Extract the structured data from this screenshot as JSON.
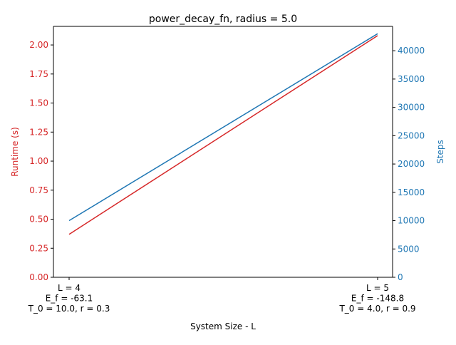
{
  "chart_data": {
    "type": "line",
    "title": "power_decay_fn, radius = 5.0",
    "xlabel": "System Size - L",
    "ylabel_left": "Runtime (s)",
    "ylabel_right": "Steps",
    "categories": [
      [
        "L = 4",
        "E_f = -63.1",
        "T_0 = 10.0, r = 0.3"
      ],
      [
        "L = 5",
        "E_f = -148.8",
        "T_0 = 4.0, r = 0.9"
      ]
    ],
    "ylim_left": [
      0,
      2.16
    ],
    "ylim_right": [
      0,
      44300
    ],
    "yticks_left": [
      "0.00",
      "0.25",
      "0.50",
      "0.75",
      "1.00",
      "1.25",
      "1.50",
      "1.75",
      "2.00"
    ],
    "yticks_right": [
      "0",
      "5000",
      "10000",
      "15000",
      "20000",
      "25000",
      "30000",
      "35000",
      "40000"
    ],
    "series": [
      {
        "name": "Runtime (s)",
        "axis": "left",
        "color": "#d62728",
        "values": [
          0.37,
          2.08
        ]
      },
      {
        "name": "Steps",
        "axis": "right",
        "color": "#1f77b4",
        "values": [
          10000,
          43000
        ]
      }
    ],
    "grid": false
  }
}
